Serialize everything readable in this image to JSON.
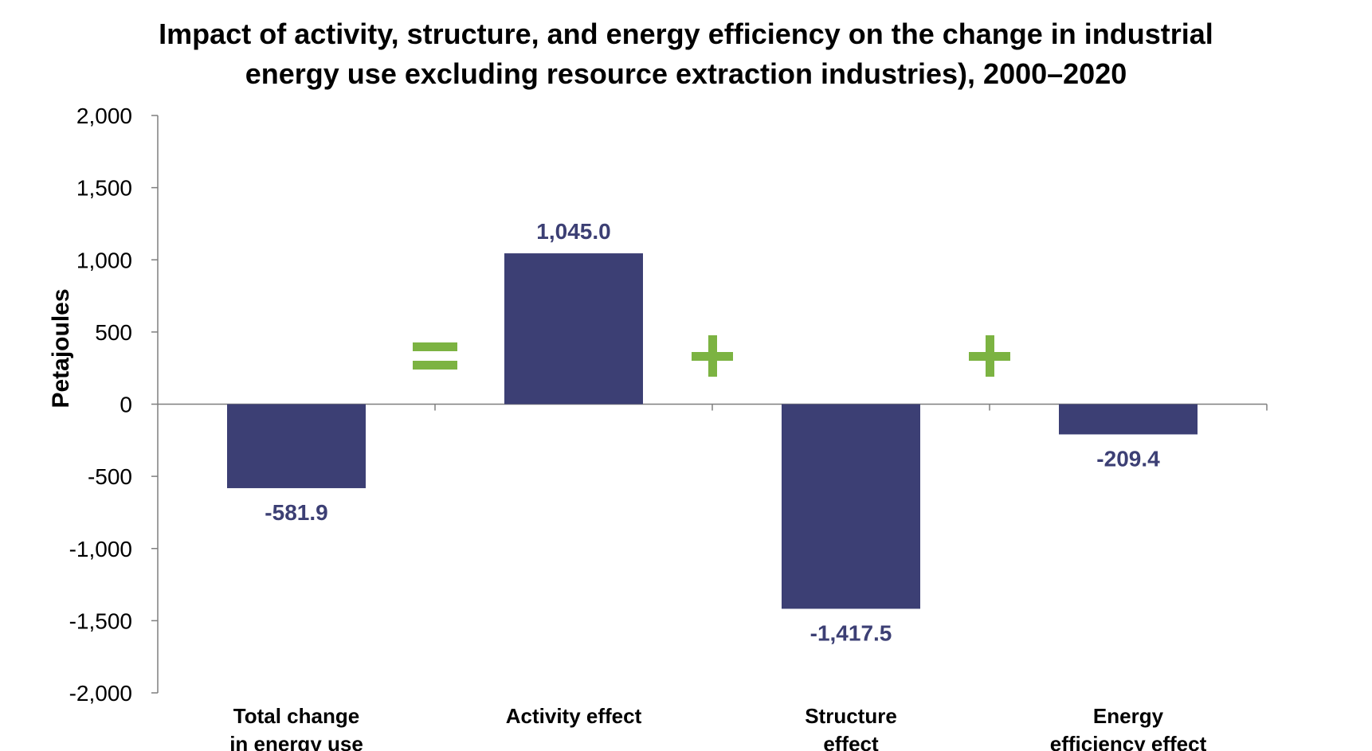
{
  "chart_data": {
    "type": "bar",
    "title": "Impact of activity, structure, and energy efficiency on the change in industrial energy use excluding resource extraction industries), 2000–2020",
    "title_lines": [
      "Impact of activity, structure, and energy efficiency on the change in industrial",
      "energy use excluding resource extraction industries), 2000–2020"
    ],
    "xlabel": "",
    "ylabel": "Petajoules",
    "ylim": [
      -2000,
      2000
    ],
    "yticks": [
      2000,
      1500,
      1000,
      500,
      0,
      -500,
      -1000,
      -1500,
      -2000
    ],
    "ytick_labels": [
      "2,000",
      "1,500",
      "1,000",
      "500",
      "0",
      "-500",
      "-1,000",
      "-1,500",
      "-2,000"
    ],
    "categories": [
      [
        "Total change",
        "in energy use"
      ],
      [
        "Activity effect"
      ],
      [
        "Structure",
        "effect"
      ],
      [
        "Energy",
        "efficiency effect"
      ]
    ],
    "values": [
      -581.9,
      1045.0,
      -1417.5,
      -209.4
    ],
    "data_labels": [
      "-581.9",
      "1,045.0",
      "-1,417.5",
      "-209.4"
    ],
    "operators": [
      "=",
      "+",
      "+"
    ],
    "grid": false,
    "legend": "none",
    "colors": {
      "bar": "#3c3f74",
      "data_label": "#3c3f74",
      "operator": "#7cb342",
      "axis": "#7f7f7f",
      "text": "#000000"
    }
  }
}
